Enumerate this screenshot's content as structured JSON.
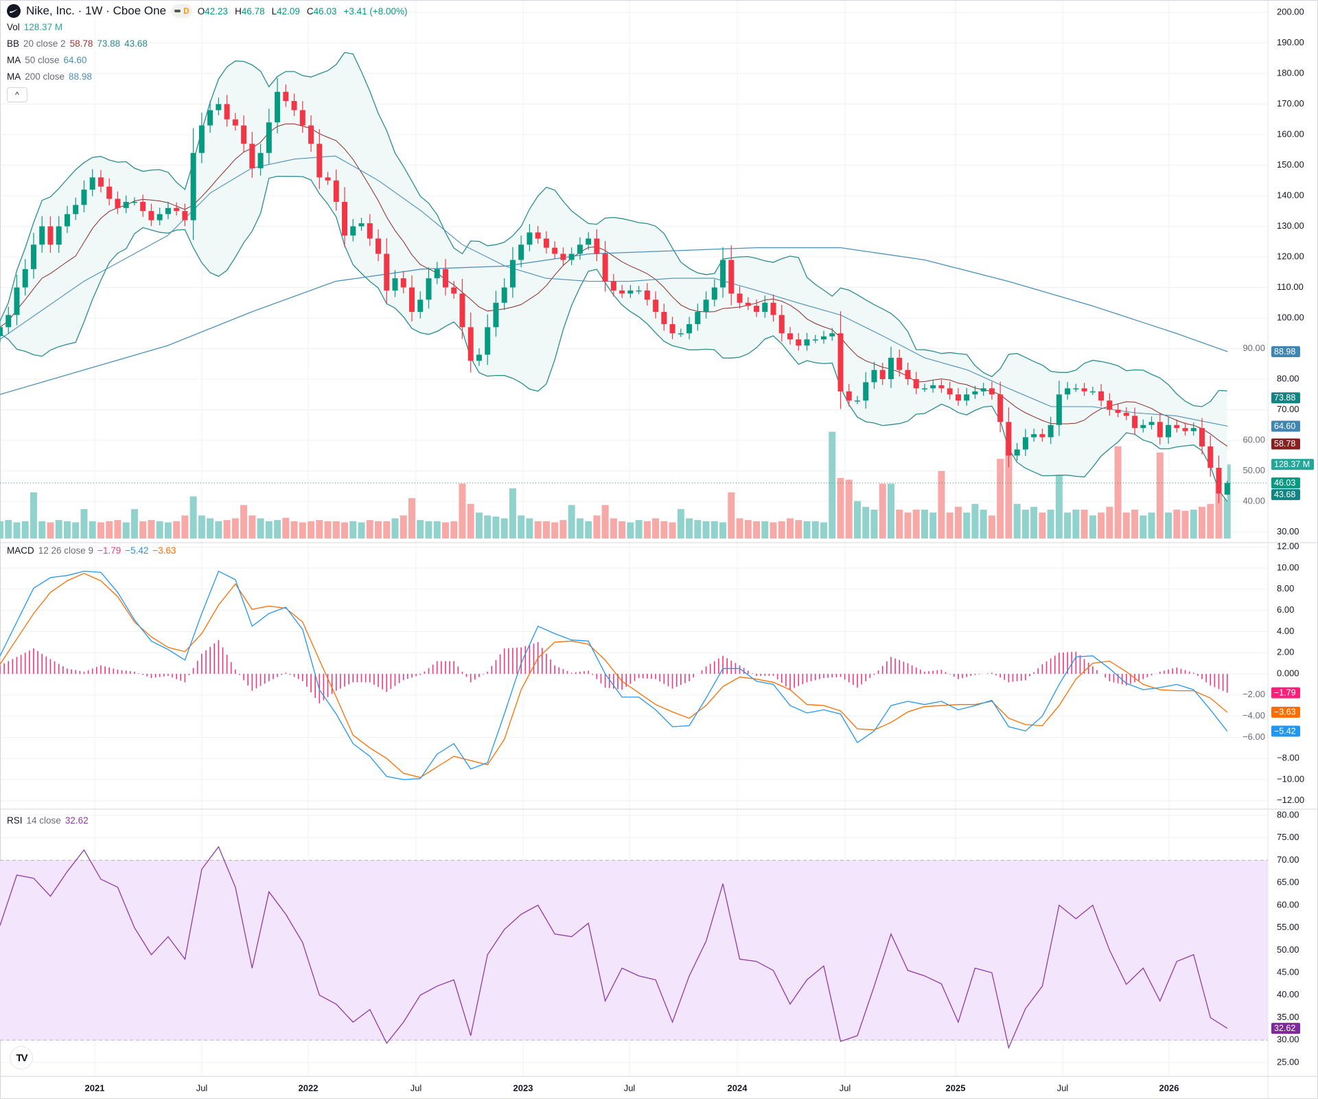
{
  "header": {
    "title": "Nike, Inc. · 1W · Cboe One",
    "interval_badge": "D",
    "open_label": "O",
    "open": "42.23",
    "high_label": "H",
    "high": "46.78",
    "low_label": "L",
    "low": "42.09",
    "close_label": "C",
    "close": "46.03",
    "change": "+3.41 (+8.00%)"
  },
  "legends": {
    "vol": {
      "name": "Vol",
      "value": "128.37 M"
    },
    "bb": {
      "name": "BB",
      "params": "20 close 2",
      "basis": "58.78",
      "upper": "73.88",
      "lower": "43.68"
    },
    "ma50": {
      "name": "MA",
      "params": "50 close",
      "value": "64.60"
    },
    "ma200": {
      "name": "MA",
      "params": "200 close",
      "value": "88.98"
    },
    "macd": {
      "name": "MACD",
      "params": "12 26 close 9",
      "hist": "−1.79",
      "macd": "−5.42",
      "signal": "−3.63"
    },
    "rsi": {
      "name": "RSI",
      "params": "14 close",
      "value": "32.62"
    }
  },
  "collapse_icon": "chevron-up",
  "colors": {
    "up": "#089981",
    "down": "#f23645",
    "vol_up": "#92d2cc",
    "vol_down": "#f7a9a7",
    "bb_line": "#2a8c8c",
    "bb_fill": "#f1f8f8",
    "bb_basis": "#8b2a2a",
    "ma": "#4a90b8",
    "macd": "#2196f3",
    "signal": "#ff6d00",
    "hist": "#f2367f",
    "rsi": "#8e3aa8",
    "rsi_band": "#f3e5fc"
  },
  "chart_data": {
    "type": "candlestick",
    "candles": {
      "start_year": 2020.56,
      "step_weeks": 2,
      "close": [
        97,
        101,
        110,
        116,
        124,
        130,
        124,
        130,
        134,
        137,
        142,
        146,
        143,
        139,
        136,
        138,
        138,
        135,
        132,
        134,
        136,
        135,
        132,
        154,
        163,
        168,
        170,
        165,
        163,
        157,
        149,
        154,
        164,
        174,
        171,
        168,
        163,
        157,
        146,
        145,
        138,
        127,
        130,
        131,
        126,
        121,
        109,
        113,
        110,
        102,
        106,
        113,
        116,
        110,
        108,
        97,
        86,
        88,
        97,
        105,
        110,
        119,
        124,
        128,
        126,
        123,
        121,
        119,
        121,
        124,
        126,
        121,
        112,
        109,
        108,
        109,
        109,
        106,
        102,
        98,
        95,
        95,
        98,
        102,
        106,
        110,
        119,
        108,
        105,
        104,
        102,
        105,
        101,
        95,
        93,
        91,
        93,
        93,
        94,
        95,
        76,
        73,
        73,
        79,
        83,
        80,
        87,
        83,
        80,
        77,
        77,
        78,
        77,
        75,
        73,
        75,
        76,
        77,
        75,
        66,
        55,
        57,
        61,
        62,
        61,
        65,
        75,
        77,
        77,
        76,
        76,
        73,
        70,
        69,
        68,
        64,
        65,
        66,
        61,
        65,
        64,
        63,
        64,
        58,
        51,
        42.62,
        46.03
      ],
      "volume_m": [
        30,
        32,
        28,
        30,
        80,
        30,
        28,
        32,
        30,
        28,
        51,
        30,
        28,
        30,
        32,
        28,
        51,
        30,
        32,
        30,
        28,
        30,
        40,
        73,
        40,
        35,
        30,
        32,
        35,
        58,
        40,
        35,
        30,
        32,
        36,
        30,
        28,
        30,
        32,
        30,
        30,
        28,
        30,
        28,
        32,
        30,
        30,
        35,
        40,
        70,
        32,
        30,
        30,
        28,
        30,
        95,
        60,
        45,
        40,
        38,
        35,
        87,
        40,
        35,
        30,
        30,
        28,
        32,
        58,
        35,
        30,
        40,
        58,
        35,
        30,
        28,
        32,
        30,
        35,
        30,
        28,
        51,
        35,
        32,
        30,
        30,
        28,
        80,
        35,
        32,
        30,
        30,
        28,
        30,
        35,
        32,
        30,
        30,
        28,
        185,
        105,
        102,
        65,
        55,
        50,
        95,
        95,
        50,
        45,
        50,
        50,
        45,
        117,
        45,
        55,
        45,
        60,
        50,
        40,
        138,
        182,
        60,
        50,
        55,
        45,
        50,
        109,
        45,
        50,
        50,
        40,
        45,
        55,
        160,
        45,
        50,
        40,
        45,
        149,
        45,
        50,
        48,
        50,
        55,
        60,
        230,
        128.37
      ],
      "last": {
        "open": 42.23,
        "high": 46.78,
        "low": 42.09,
        "close": 46.03
      }
    },
    "ma50": [
      [
        2020.56,
        93
      ],
      [
        2020.95,
        112
      ],
      [
        2021.34,
        127
      ],
      [
        2021.54,
        141
      ],
      [
        2021.73,
        149
      ],
      [
        2021.93,
        152
      ],
      [
        2022.12,
        153
      ],
      [
        2022.32,
        145
      ],
      [
        2022.52,
        135
      ],
      [
        2022.71,
        124
      ],
      [
        2022.91,
        117
      ],
      [
        2023.1,
        113
      ],
      [
        2023.3,
        112
      ],
      [
        2023.49,
        112
      ],
      [
        2023.69,
        113
      ],
      [
        2023.88,
        113
      ],
      [
        2024.08,
        109
      ],
      [
        2024.27,
        105
      ],
      [
        2024.47,
        101
      ],
      [
        2024.67,
        94
      ],
      [
        2024.86,
        87
      ],
      [
        2025.06,
        83
      ],
      [
        2025.25,
        77
      ],
      [
        2025.45,
        71
      ],
      [
        2025.64,
        71
      ],
      [
        2025.84,
        69
      ],
      [
        2026.03,
        68
      ],
      [
        2026.27,
        64.6
      ]
    ],
    "ma200": [
      [
        2020.56,
        75
      ],
      [
        2020.95,
        83
      ],
      [
        2021.34,
        91
      ],
      [
        2021.73,
        102
      ],
      [
        2022.12,
        112
      ],
      [
        2022.52,
        116
      ],
      [
        2022.91,
        117
      ],
      [
        2023.3,
        121
      ],
      [
        2023.69,
        122
      ],
      [
        2024.08,
        123
      ],
      [
        2024.47,
        123
      ],
      [
        2024.86,
        119
      ],
      [
        2025.25,
        112
      ],
      [
        2025.64,
        104
      ],
      [
        2026.03,
        95
      ],
      [
        2026.27,
        88.98
      ]
    ],
    "macd": {
      "start_year": 2020.56,
      "step_weeks": 4,
      "macd": [
        1.7,
        4.9,
        8.1,
        9.1,
        9.3,
        9.7,
        9.6,
        7.7,
        5.1,
        3.1,
        2.3,
        1.3,
        5.7,
        9.7,
        8.9,
        4.5,
        5.7,
        6.3,
        4.2,
        -1.5,
        -3.8,
        -6.6,
        -7.8,
        -9.7,
        -10,
        -9.9,
        -7.6,
        -6.6,
        -9.0,
        -8.4,
        -3.8,
        1.0,
        4.5,
        3.8,
        3.2,
        3.1,
        0.0,
        -2.2,
        -2.2,
        -3.4,
        -5.0,
        -4.9,
        -2.3,
        0.5,
        0.5,
        -0.7,
        -1.0,
        -3.0,
        -3.7,
        -3.4,
        -3.8,
        -6.5,
        -5.4,
        -3.0,
        -2.6,
        -2.9,
        -2.6,
        -3.4,
        -3.0,
        -2.5,
        -5.0,
        -5.4,
        -4.0,
        -1.0,
        1.6,
        1.7,
        0.5,
        -0.9,
        -1.5,
        -1.3,
        -1.0,
        -1.5,
        -3.4,
        -5.42
      ],
      "signal": [
        0.9,
        3.3,
        5.7,
        7.7,
        8.8,
        9.5,
        8.8,
        7.3,
        4.9,
        3.5,
        2.5,
        2.1,
        3.8,
        6.5,
        8.5,
        6.1,
        6.4,
        6.2,
        4.9,
        1.3,
        -2.2,
        -5.8,
        -7.0,
        -8.0,
        -9.4,
        -9.8,
        -8.8,
        -7.8,
        -8.2,
        -8.6,
        -6.2,
        -1.5,
        1.5,
        3.0,
        3.1,
        2.8,
        1.3,
        -0.7,
        -1.8,
        -2.9,
        -3.6,
        -4.2,
        -3.0,
        -1.2,
        -0.3,
        -0.5,
        -0.8,
        -1.5,
        -2.9,
        -3.0,
        -3.5,
        -5.2,
        -5.3,
        -4.6,
        -3.6,
        -3.1,
        -3.0,
        -2.9,
        -2.9,
        -2.6,
        -4.2,
        -4.8,
        -4.9,
        -3.0,
        -0.5,
        1.0,
        1.2,
        0.2,
        -1.0,
        -1.5,
        -1.6,
        -1.6,
        -2.3,
        -3.63
      ]
    },
    "rsi": {
      "start_year": 2020.56,
      "step_weeks": 4,
      "values": [
        55.5,
        66.7,
        66,
        62,
        67.5,
        72.3,
        65.8,
        64,
        55,
        49,
        53,
        48,
        68,
        73,
        64,
        46,
        63,
        58,
        51.7,
        40,
        38,
        34,
        36.8,
        29.3,
        34,
        40,
        42,
        43.4,
        31,
        49,
        54.6,
        58,
        60,
        53.6,
        53,
        56,
        38.7,
        46,
        44.3,
        43.4,
        34,
        44.3,
        52,
        64.8,
        48,
        47.5,
        45.5,
        38,
        43.4,
        46.5,
        29.7,
        31,
        42,
        53.6,
        45.5,
        44.3,
        42.5,
        34,
        46,
        45,
        28.3,
        37,
        42,
        60,
        57,
        60,
        50,
        42.4,
        46,
        38.7,
        47.5,
        49,
        35,
        32.62
      ],
      "upper": 70,
      "lower": 30
    },
    "price_axis": [
      "200.00",
      "190.00",
      "180.00",
      "170.00",
      "160.00",
      "150.00",
      "140.00",
      "130.00",
      "120.00",
      "110.00",
      "100.00",
      "90.00",
      "80.00",
      "70.00",
      "60.00",
      "50.00",
      "40.00",
      "30.00"
    ],
    "macd_axis": [
      "12.00",
      "10.00",
      "8.00",
      "6.00",
      "4.00",
      "2.00",
      "0.000",
      "−2.00",
      "−4.00",
      "−6.00",
      "−8.00",
      "−10.00",
      "−12.00"
    ],
    "rsi_axis": [
      "80.00",
      "75.00",
      "70.00",
      "65.00",
      "60.00",
      "55.00",
      "50.00",
      "45.00",
      "40.00",
      "35.00",
      "30.00",
      "25.00"
    ],
    "time_axis": [
      {
        "label": "2021",
        "bold": true
      },
      {
        "label": "Jul",
        "bold": false
      },
      {
        "label": "2022",
        "bold": true
      },
      {
        "label": "Jul",
        "bold": false
      },
      {
        "label": "2023",
        "bold": true
      },
      {
        "label": "Jul",
        "bold": false
      },
      {
        "label": "2024",
        "bold": true
      },
      {
        "label": "Jul",
        "bold": false
      },
      {
        "label": "2025",
        "bold": true
      },
      {
        "label": "Jul",
        "bold": false
      },
      {
        "label": "2026",
        "bold": true
      }
    ],
    "badges": {
      "ma200": "88.98",
      "bb_upper": "73.88",
      "ma50": "64.60",
      "bb_basis": "58.78",
      "volume": "128.37 M",
      "price": "46.03",
      "bb_lower": "43.68",
      "hist": "−1.79",
      "signal": "−3.63",
      "macd": "−5.42",
      "rsi": "32.62"
    }
  }
}
